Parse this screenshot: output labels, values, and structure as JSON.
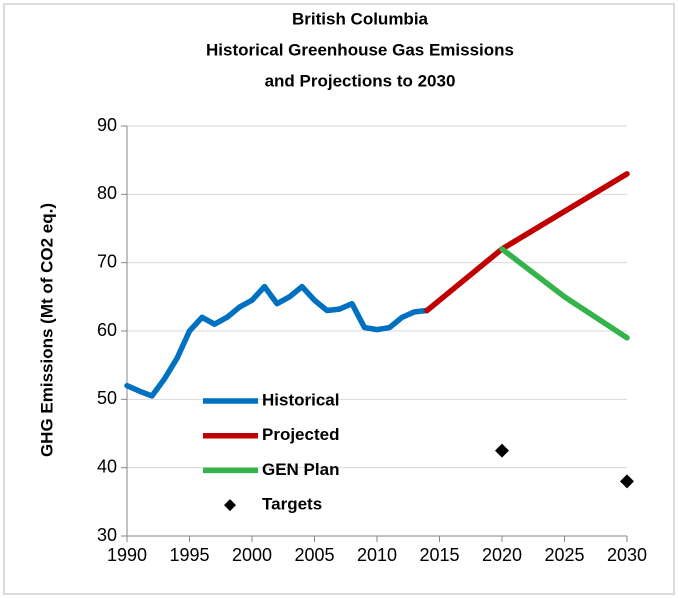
{
  "chart_data": {
    "type": "line",
    "title": [
      "British Columbia",
      "Historical Greenhouse Gas Emissions",
      "and Projections to 2030"
    ],
    "y_label": "GHG Emissions (Mt of CO2 eq.)",
    "series": [
      {
        "name": "Historical",
        "color": "#0070c0",
        "x": [
          1990,
          1991,
          1992,
          1993,
          1994,
          1995,
          1996,
          1997,
          1998,
          1999,
          2000,
          2001,
          2002,
          2003,
          2004,
          2005,
          2006,
          2007,
          2008,
          2009,
          2010,
          2011,
          2012,
          2013,
          2014
        ],
        "values": [
          52,
          51.2,
          50.5,
          53,
          56,
          60,
          62,
          61,
          62,
          63.5,
          64.5,
          66.5,
          64,
          65,
          66.5,
          64.5,
          63,
          63.2,
          64,
          60.5,
          60.2,
          60.5,
          62,
          62.8,
          63
        ]
      },
      {
        "name": "Projected",
        "color": "#c00000",
        "x": [
          2014,
          2020,
          2025,
          2030
        ],
        "values": [
          63,
          72,
          77.5,
          83
        ]
      },
      {
        "name": "GEN Plan",
        "color": "#33b34a",
        "x": [
          2020,
          2025,
          2030
        ],
        "values": [
          72,
          65,
          59
        ]
      },
      {
        "name": "Targets",
        "color": "#000000",
        "marker": "diamond",
        "x": [
          2020,
          2030
        ],
        "values": [
          42.5,
          38
        ]
      }
    ],
    "xlim": [
      1990,
      2030
    ],
    "xticks": [
      1990,
      1995,
      2000,
      2005,
      2010,
      2015,
      2020,
      2025,
      2030
    ],
    "ylim": [
      30,
      90
    ],
    "yticks": [
      30,
      40,
      50,
      60,
      70,
      80,
      90
    ],
    "grid": true
  }
}
